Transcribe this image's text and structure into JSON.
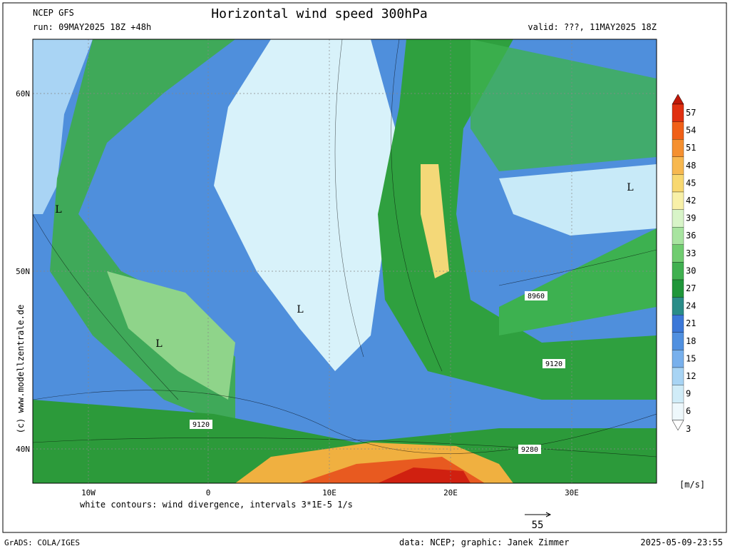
{
  "header": {
    "model": "NCEP GFS",
    "run": "run: 09MAY2025 18Z +48h",
    "title": "Horizontal wind speed 300hPa",
    "valid": "valid: ???, 11MAY2025 18Z"
  },
  "map": {
    "lat_labels": [
      "60N",
      "50N",
      "40N"
    ],
    "lon_labels": [
      "10W",
      "0",
      "10E",
      "20E",
      "30E"
    ],
    "lows": [
      "L",
      "L",
      "L",
      "L"
    ],
    "contour_labels": [
      "8960",
      "9120",
      "9120",
      "9280"
    ]
  },
  "colorbar": {
    "labels": [
      "57",
      "54",
      "51",
      "48",
      "45",
      "42",
      "39",
      "36",
      "33",
      "30",
      "27",
      "24",
      "21",
      "18",
      "15",
      "12",
      "9",
      "6",
      "3"
    ],
    "unit": "[m/s]"
  },
  "footer": {
    "note": "white contours: wind divergence, intervals 3*1E-5 1/s",
    "scale": "55",
    "credit": "(c) www.modellzentrale.de",
    "software": "GrADS: COLA/IGES",
    "source": "data: NCEP; graphic: Janek Zimmer",
    "timestamp": "2025-05-09-23:55"
  }
}
